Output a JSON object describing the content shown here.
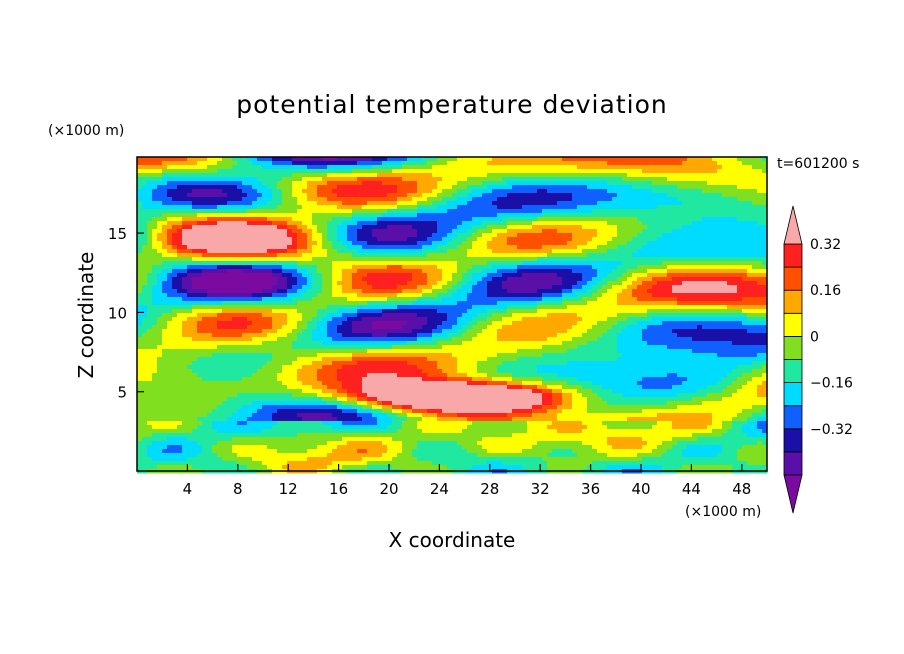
{
  "chart_data": {
    "type": "heatmap",
    "title": "potential temperature deviation",
    "xlabel": "X coordinate",
    "ylabel": "Z coordinate",
    "x_unit": "(×1000 m)",
    "y_unit": "(×1000 m)",
    "time_label": "t=601200 s",
    "xlim": [
      0,
      50
    ],
    "ylim": [
      0,
      19.8
    ],
    "x_ticks": [
      4,
      8,
      12,
      16,
      20,
      24,
      28,
      32,
      36,
      40,
      44,
      48
    ],
    "y_ticks": [
      5,
      10,
      15
    ],
    "colorbar": {
      "levels": [
        -0.4,
        -0.32,
        -0.24,
        -0.16,
        -0.08,
        0,
        0.08,
        0.16,
        0.24,
        0.32,
        0.4
      ],
      "tick_labels": [
        "0.32",
        "0.16",
        "0",
        "−0.16",
        "−0.32"
      ],
      "tick_values": [
        0.32,
        0.16,
        0,
        -0.16,
        -0.32
      ],
      "colors_low_to_high": [
        "#7a0aa0",
        "#5a10a8",
        "#1a10a8",
        "#1060ff",
        "#00dcff",
        "#20e8a0",
        "#80e020",
        "#ffff00",
        "#ffa800",
        "#ff5000",
        "#ff2020",
        "#f8a8a8"
      ],
      "extend": "both"
    },
    "grid": false
  }
}
